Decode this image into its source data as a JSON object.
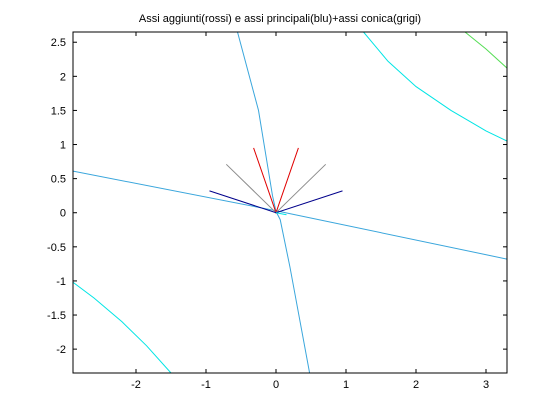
{
  "chart_data": {
    "type": "line",
    "title": "Assi aggiunti(rossi) e assi principali(blu)+assi conica(grigi)",
    "xlabel": "",
    "ylabel": "",
    "xlim": [
      -2.9,
      3.3
    ],
    "ylim": [
      -2.35,
      2.65
    ],
    "grid": false,
    "xticks": [
      -2,
      -1,
      0,
      1,
      2,
      3
    ],
    "xtick_labels": [
      "-2",
      "-1",
      "0",
      "1",
      "2",
      "3"
    ],
    "yticks": [
      -2,
      -1.5,
      -1,
      -0.5,
      0,
      0.5,
      1,
      1.5,
      2,
      2.5
    ],
    "ytick_labels": [
      "-2",
      "-1.5",
      "-1",
      "-0.5",
      "0",
      "0.5",
      "1",
      "1.5",
      "2",
      "2.5"
    ],
    "colors": {
      "curve": "#00e5e5",
      "curve_asymptote": "#3aa6dc",
      "curve_outer": "#55dd55",
      "red_axis": "#e00000",
      "blue_axis": "#00008b",
      "grey_axis": "#8c8c8c"
    },
    "series": [
      {
        "color": "curve_asymptote",
        "points": [
          [
            -2.9,
            0.61
          ],
          [
            -0.2,
            0.07
          ],
          [
            0.0,
            0.03
          ],
          [
            3.3,
            -0.68
          ]
        ]
      },
      {
        "color": "curve_asymptote",
        "points": [
          [
            -0.55,
            2.65
          ],
          [
            -0.25,
            1.5
          ],
          [
            -0.05,
            0.25
          ],
          [
            0.0,
            0.02
          ],
          [
            0.06,
            -0.1
          ],
          [
            0.2,
            -0.8
          ],
          [
            0.48,
            -2.35
          ]
        ]
      },
      {
        "color": "curve",
        "points": [
          [
            1.25,
            2.65
          ],
          [
            1.6,
            2.22
          ],
          [
            2.0,
            1.85
          ],
          [
            2.5,
            1.5
          ],
          [
            3.0,
            1.2
          ],
          [
            3.3,
            1.05
          ]
        ]
      },
      {
        "color": "curve",
        "points": [
          [
            -2.9,
            -1.02
          ],
          [
            -2.6,
            -1.25
          ],
          [
            -2.2,
            -1.6
          ],
          [
            -1.85,
            -1.95
          ],
          [
            -1.5,
            -2.35
          ]
        ]
      },
      {
        "color": "curve_outer",
        "points": [
          [
            2.7,
            2.65
          ],
          [
            3.0,
            2.4
          ],
          [
            3.3,
            2.12
          ]
        ]
      },
      {
        "color": "red_axis",
        "points": [
          [
            -0.32,
            0.95
          ],
          [
            0.0,
            0.0
          ],
          [
            0.32,
            0.95
          ]
        ]
      },
      {
        "color": "grey_axis",
        "points": [
          [
            -0.71,
            0.71
          ],
          [
            0.0,
            0.0
          ],
          [
            0.71,
            0.71
          ]
        ]
      },
      {
        "color": "blue_axis",
        "points": [
          [
            -0.95,
            0.32
          ],
          [
            0.0,
            0.0
          ],
          [
            0.95,
            0.32
          ]
        ]
      },
      {
        "color": "curve",
        "points": [
          [
            0.0,
            0.0
          ],
          [
            0.15,
            -0.03
          ]
        ]
      }
    ]
  }
}
